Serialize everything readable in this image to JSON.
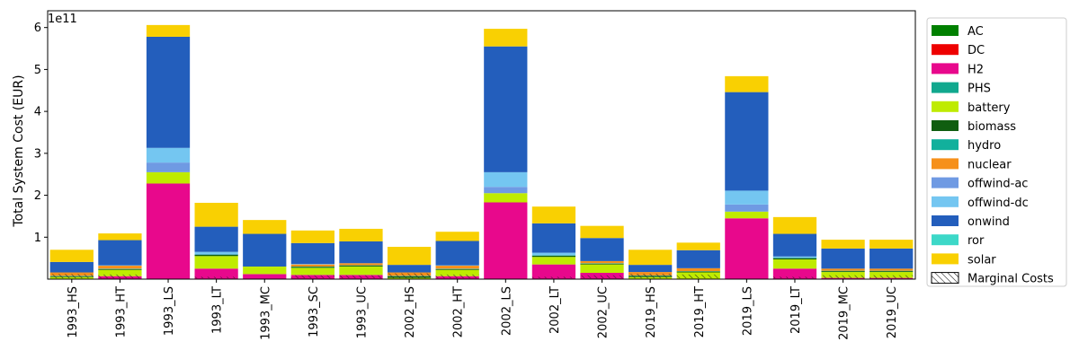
{
  "chart_data": {
    "type": "bar",
    "stacked": true,
    "ylabel": "Total System Cost (EUR)",
    "y_scale_label": "1e11",
    "y_ticks": [
      1,
      2,
      3,
      4,
      5,
      6
    ],
    "ylim": [
      0,
      6.4
    ],
    "categories": [
      "1993_HS",
      "1993_HT",
      "1993_LS",
      "1993_LT",
      "1993_MC",
      "1993_SC",
      "1993_UC",
      "2002_HS",
      "2002_HT",
      "2002_LS",
      "2002_LT",
      "2002_UC",
      "2019_HS",
      "2019_HT",
      "2019_LS",
      "2019_LT",
      "2019_MC",
      "2019_UC"
    ],
    "series": [
      {
        "name": "AC",
        "color": "#008000",
        "values": [
          0,
          0,
          0,
          0,
          0,
          0,
          0,
          0,
          0,
          0,
          0,
          0,
          0,
          0,
          0,
          0,
          0,
          0
        ]
      },
      {
        "name": "DC",
        "color": "#ee0000",
        "values": [
          0,
          0,
          0,
          0,
          0,
          0,
          0,
          0,
          0,
          0,
          0,
          0,
          0,
          0,
          0,
          0,
          0,
          0
        ]
      },
      {
        "name": "H2",
        "color": "#e8088c",
        "values": [
          0,
          0.07,
          2.28,
          0.25,
          0.12,
          0.1,
          0.1,
          0,
          0.07,
          1.83,
          0.35,
          0.15,
          0,
          0,
          1.45,
          0.25,
          0.03,
          0.03
        ]
      },
      {
        "name": "PHS",
        "color": "#11a88e",
        "values": [
          0,
          0,
          0,
          0,
          0,
          0,
          0,
          0,
          0,
          0,
          0,
          0,
          0,
          0,
          0,
          0,
          0,
          0
        ]
      },
      {
        "name": "battery",
        "color": "#bfeb00",
        "values": [
          0.05,
          0.15,
          0.27,
          0.3,
          0.18,
          0.17,
          0.2,
          0.03,
          0.15,
          0.22,
          0.18,
          0.2,
          0.05,
          0.16,
          0.16,
          0.22,
          0.14,
          0.14
        ]
      },
      {
        "name": "biomass",
        "color": "#105e10",
        "values": [
          0.02,
          0.02,
          0,
          0.03,
          0,
          0.02,
          0.02,
          0.04,
          0.02,
          0,
          0.03,
          0.02,
          0.03,
          0.02,
          0,
          0.03,
          0.02,
          0.02
        ]
      },
      {
        "name": "hydro",
        "color": "#12b09c",
        "values": [
          0.01,
          0.01,
          0,
          0.01,
          0,
          0.01,
          0.01,
          0.01,
          0.01,
          0,
          0.01,
          0.01,
          0.01,
          0.01,
          0,
          0.01,
          0.01,
          0.01
        ]
      },
      {
        "name": "nuclear",
        "color": "#f6901a",
        "values": [
          0.08,
          0.07,
          0,
          0,
          0,
          0.05,
          0.05,
          0.08,
          0.07,
          0,
          0,
          0.05,
          0.08,
          0.07,
          0,
          0,
          0.05,
          0.05
        ]
      },
      {
        "name": "offwind-ac",
        "color": "#6f9ae3",
        "values": [
          0,
          0,
          0.23,
          0.01,
          0,
          0,
          0,
          0,
          0,
          0.15,
          0,
          0,
          0,
          0,
          0.17,
          0,
          0,
          0
        ]
      },
      {
        "name": "offwind-dc",
        "color": "#74c6f1",
        "values": [
          0,
          0.01,
          0.35,
          0.05,
          0,
          0.01,
          0,
          0,
          0.01,
          0.35,
          0.06,
          0,
          0,
          0,
          0.33,
          0.03,
          0,
          0
        ]
      },
      {
        "name": "onwind",
        "color": "#235ebc",
        "values": [
          0.25,
          0.6,
          2.65,
          0.6,
          0.78,
          0.5,
          0.52,
          0.18,
          0.58,
          3.0,
          0.7,
          0.55,
          0.17,
          0.43,
          2.35,
          0.54,
          0.48,
          0.48
        ]
      },
      {
        "name": "ror",
        "color": "#3dd8c8",
        "values": [
          0,
          0,
          0,
          0,
          0,
          0,
          0,
          0,
          0,
          0,
          0,
          0,
          0,
          0,
          0,
          0,
          0,
          0
        ]
      },
      {
        "name": "solar",
        "color": "#f9d002",
        "values": [
          0.29,
          0.16,
          0.28,
          0.57,
          0.33,
          0.3,
          0.3,
          0.43,
          0.22,
          0.42,
          0.4,
          0.29,
          0.36,
          0.18,
          0.38,
          0.4,
          0.21,
          0.21
        ]
      }
    ],
    "legend_extra": "Marginal Costs",
    "legend_placement": "outside-right",
    "grid": false
  }
}
